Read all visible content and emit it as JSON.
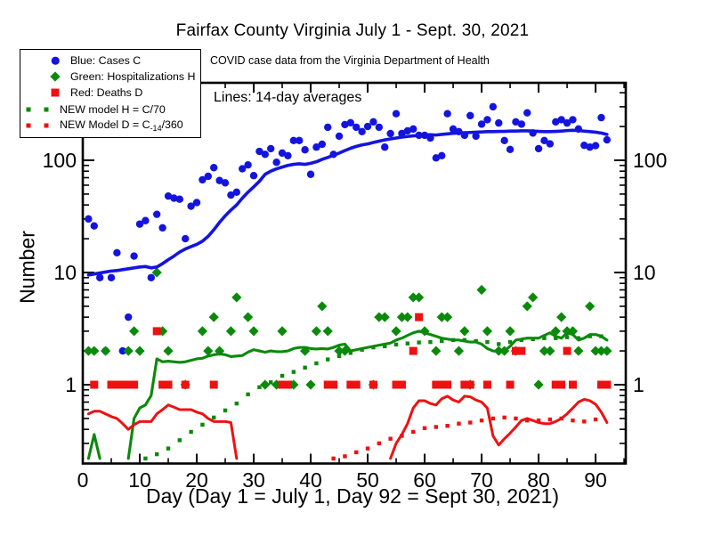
{
  "title": "Fairfax County Virginia July 1 - Sept. 30, 2021",
  "subtitle": "COVID case data from the Virginia Department of Health",
  "annotation": "Lines: 14-day averages",
  "colors": {
    "cases": "#1414e0",
    "hospitalizations": "#0a8a0a",
    "deaths": "#ee1111",
    "axis": "#000000"
  },
  "legend": {
    "items": [
      {
        "marker": "circle",
        "color": "#1414e0",
        "text": "Blue: Cases C"
      },
      {
        "marker": "diamond",
        "color": "#0a8a0a",
        "text": "Green: Hospitalizations H"
      },
      {
        "marker": "square",
        "color": "#ee1111",
        "text": "Red: Deaths D"
      },
      {
        "marker": "dots",
        "color": "#0a8a0a",
        "text": "NEW model H = C/70"
      },
      {
        "marker": "dots",
        "color": "#ee1111",
        "text": "NEW Model D = C",
        "sub": "-14",
        "after": "/360"
      }
    ]
  },
  "chart_data": {
    "type": "scatter",
    "title": "Fairfax County Virginia July 1 - Sept. 30, 2021",
    "x_label": "Day (Day 1 = July 1, Day 92 = Sept 30, 2021)",
    "y_label": "Number",
    "y_scale": "log",
    "x_range": [
      0,
      95.3
    ],
    "y_range": [
      0.2,
      490
    ],
    "x_major_ticks": [
      0,
      10,
      20,
      30,
      40,
      50,
      60,
      70,
      80,
      90
    ],
    "x_minor_ticks": [
      5,
      15,
      25,
      35,
      45,
      55,
      65,
      75,
      85,
      95
    ],
    "y_major_ticks": [
      1,
      10,
      100
    ],
    "grid": false,
    "legend_position": "top-left",
    "day_start": 1,
    "series": [
      {
        "id": "cases",
        "name": "Cases C (daily)",
        "style": "scatter",
        "marker": "circle",
        "color": "#1414e0",
        "values": [
          30,
          26,
          9,
          2,
          9,
          15,
          2,
          4,
          14,
          27,
          29,
          9,
          33,
          25,
          48,
          46,
          45,
          20,
          39,
          42,
          67,
          72,
          86,
          66,
          63,
          49,
          52,
          84,
          91,
          73,
          120,
          113,
          127,
          96,
          116,
          110,
          150,
          150,
          124,
          75,
          131,
          139,
          197,
          113,
          164,
          208,
          216,
          197,
          180,
          200,
          220,
          197,
          131,
          173,
          260,
          173,
          183,
          190,
          167,
          167,
          158,
          105,
          110,
          260,
          190,
          180,
          167,
          250,
          164,
          210,
          230,
          300,
          215,
          150,
          125,
          220,
          210,
          265,
          175,
          127,
          150,
          140,
          220,
          230,
          215,
          230,
          190,
          136,
          131,
          135,
          240,
          152
        ]
      },
      {
        "id": "hospitalizations",
        "name": "Hospitalizations H (daily)",
        "style": "scatter",
        "marker": "diamond",
        "color": "#0a8a0a",
        "values": [
          2,
          2,
          0,
          2,
          0,
          0,
          0,
          2,
          3,
          2,
          0,
          0,
          10,
          3,
          2,
          0,
          0,
          1,
          0,
          0,
          3,
          2,
          4,
          2,
          0,
          3,
          6,
          0,
          4,
          3,
          0,
          1,
          0,
          1,
          3,
          0,
          1,
          0,
          2,
          1,
          3,
          5,
          3,
          0,
          2,
          2,
          0,
          0,
          0,
          0,
          1,
          4,
          4,
          0,
          3,
          4,
          4,
          6,
          6,
          3,
          0,
          2,
          4,
          4,
          0,
          2,
          3,
          1,
          0,
          7,
          3,
          0,
          2,
          2,
          3,
          2,
          0,
          5,
          6,
          1,
          2,
          2,
          3,
          4,
          3,
          3,
          2,
          0,
          5,
          2,
          2,
          2
        ]
      },
      {
        "id": "deaths",
        "name": "Deaths D (daily)",
        "style": "scatter",
        "marker": "square",
        "color": "#ee1111",
        "values": [
          0,
          1,
          0,
          0,
          1,
          1,
          1,
          1,
          1,
          0,
          0,
          0,
          3,
          1,
          1,
          0,
          0,
          1,
          0,
          0,
          0,
          0,
          1,
          0,
          0,
          0,
          0,
          0,
          0,
          0,
          0,
          0,
          0,
          0,
          1,
          1,
          0,
          0,
          0,
          0,
          0,
          0,
          1,
          1,
          0,
          0,
          1,
          1,
          0,
          0,
          1,
          0,
          0,
          0,
          1,
          1,
          0,
          2,
          4,
          0,
          0,
          1,
          1,
          1,
          0,
          0,
          1,
          1,
          0,
          0,
          1,
          0,
          0,
          0,
          1,
          2,
          2,
          0,
          0,
          0,
          0,
          0,
          1,
          1,
          2,
          1,
          0,
          0,
          0,
          0,
          1,
          1
        ]
      },
      {
        "id": "cases_avg14",
        "name": "Cases 14-day average",
        "style": "line",
        "width": 3.6,
        "color": "#1414e0",
        "values": [
          9.5,
          9.7,
          9.9,
          10.1,
          10.3,
          10.4,
          10.6,
          10.8,
          11,
          11.2,
          11.3,
          11,
          11.2,
          12,
          13,
          14,
          15.2,
          16.2,
          17,
          17.8,
          19,
          21,
          24,
          28,
          32,
          36,
          40,
          46,
          52,
          58,
          65,
          75,
          80,
          84,
          87,
          90,
          92,
          93,
          92,
          94,
          97,
          102,
          106,
          111,
          116,
          122,
          128,
          133,
          137,
          140,
          144,
          148,
          152,
          155,
          158,
          161,
          163,
          165,
          167,
          168,
          169,
          168,
          170,
          172,
          174,
          175,
          176,
          177,
          178,
          179,
          180,
          180,
          181,
          181,
          182,
          182,
          183,
          183,
          182,
          181,
          180,
          180,
          181,
          182,
          184,
          185,
          184,
          182,
          180,
          178,
          175,
          170
        ]
      },
      {
        "id": "hosp_avg14",
        "name": "Hospitalizations 14-day average",
        "style": "line",
        "width": 3.1,
        "color": "#0a8a0a",
        "values": [
          0.22,
          0.36,
          0.22,
          0,
          0,
          0,
          0,
          0.22,
          0.5,
          0.62,
          0.66,
          0.8,
          1.7,
          1.6,
          1.62,
          1.6,
          1.58,
          1.6,
          1.65,
          1.7,
          1.72,
          1.8,
          1.85,
          1.88,
          1.85,
          1.78,
          1.8,
          1.82,
          1.95,
          2.05,
          2.0,
          1.95,
          2.0,
          1.97,
          1.97,
          2.0,
          2.1,
          2.15,
          2.15,
          2.1,
          2.08,
          2.1,
          2.08,
          2.15,
          2.25,
          2.3,
          2.0,
          2.05,
          2.1,
          2.15,
          2.2,
          2.25,
          2.3,
          2.35,
          2.5,
          2.6,
          2.75,
          2.9,
          3.0,
          2.9,
          2.8,
          2.7,
          2.6,
          2.55,
          2.5,
          2.5,
          2.45,
          2.4,
          2.4,
          2.3,
          2.1,
          2.0,
          1.97,
          2.0,
          2.2,
          2.5,
          2.55,
          2.6,
          2.6,
          2.6,
          2.75,
          2.9,
          2.7,
          2.6,
          2.9,
          2.8,
          2.5,
          2.6,
          2.8,
          2.8,
          2.7,
          2.5
        ]
      },
      {
        "id": "deaths_avg14",
        "name": "Deaths 14-day average",
        "style": "line",
        "width": 3.0,
        "color": "#ee1111",
        "values": [
          0.55,
          0.58,
          0.58,
          0.55,
          0.52,
          0.5,
          0.45,
          0.4,
          0.44,
          0.47,
          0.47,
          0.47,
          0.55,
          0.6,
          0.66,
          0.63,
          0.6,
          0.6,
          0.6,
          0.57,
          0.55,
          0.5,
          0.47,
          0.47,
          0.47,
          0.46,
          0.22,
          0,
          0,
          0,
          0,
          0,
          0,
          0,
          0,
          0,
          0,
          0,
          0,
          0,
          0,
          0,
          0,
          0,
          0,
          0,
          0,
          0,
          0,
          0,
          0,
          0,
          0,
          0.22,
          0.3,
          0.36,
          0.45,
          0.62,
          0.72,
          0.72,
          0.68,
          0.66,
          0.75,
          0.79,
          0.73,
          0.7,
          0.79,
          0.78,
          0.73,
          0.7,
          0.62,
          0.35,
          0.29,
          0.33,
          0.37,
          0.42,
          0.48,
          0.5,
          0.48,
          0.46,
          0.45,
          0.45,
          0.47,
          0.5,
          0.55,
          0.62,
          0.7,
          0.74,
          0.72,
          0.67,
          0.57,
          0.46
        ]
      },
      {
        "id": "model_h",
        "name": "NEW model H = C/70",
        "style": "dots",
        "color": "#0a8a0a",
        "points": [
          [
            11,
            0.22
          ],
          [
            13,
            0.24
          ],
          [
            15,
            0.27
          ],
          [
            17,
            0.32
          ],
          [
            19,
            0.38
          ],
          [
            21,
            0.44
          ],
          [
            23,
            0.51
          ],
          [
            25,
            0.59
          ],
          [
            27,
            0.68
          ],
          [
            29,
            0.82
          ],
          [
            31,
            0.95
          ],
          [
            33,
            1.05
          ],
          [
            35,
            1.2
          ],
          [
            37,
            1.3
          ],
          [
            39,
            1.42
          ],
          [
            41,
            1.55
          ],
          [
            43,
            1.68
          ],
          [
            45,
            1.8
          ],
          [
            47,
            1.92
          ],
          [
            49,
            2.05
          ],
          [
            51,
            2.15
          ],
          [
            53,
            2.2
          ],
          [
            55,
            2.28
          ],
          [
            57,
            2.33
          ],
          [
            59,
            2.38
          ],
          [
            61,
            2.4
          ],
          [
            63,
            2.45
          ],
          [
            65,
            2.5
          ],
          [
            67,
            2.5
          ],
          [
            69,
            2.45
          ],
          [
            71,
            2.4
          ],
          [
            73,
            2.3
          ],
          [
            75,
            2.4
          ],
          [
            77,
            2.5
          ],
          [
            79,
            2.55
          ],
          [
            81,
            2.6
          ],
          [
            83,
            2.6
          ],
          [
            85,
            2.65
          ],
          [
            87,
            2.6
          ],
          [
            89,
            2.7
          ],
          [
            91,
            2.7
          ]
        ]
      },
      {
        "id": "model_d",
        "name": "NEW Model D = C-14/360",
        "style": "dots",
        "color": "#ee1111",
        "points": [
          [
            44,
            0.22
          ],
          [
            46,
            0.23
          ],
          [
            48,
            0.25
          ],
          [
            50,
            0.27
          ],
          [
            52,
            0.3
          ],
          [
            54,
            0.33
          ],
          [
            56,
            0.35
          ],
          [
            58,
            0.38
          ],
          [
            60,
            0.41
          ],
          [
            62,
            0.42
          ],
          [
            64,
            0.43
          ],
          [
            66,
            0.45
          ],
          [
            68,
            0.46
          ],
          [
            70,
            0.48
          ],
          [
            72,
            0.5
          ],
          [
            74,
            0.51
          ],
          [
            76,
            0.5
          ],
          [
            78,
            0.48
          ],
          [
            80,
            0.48
          ],
          [
            82,
            0.49
          ],
          [
            84,
            0.5
          ],
          [
            86,
            0.48
          ],
          [
            88,
            0.47
          ],
          [
            90,
            0.49
          ]
        ]
      }
    ]
  }
}
